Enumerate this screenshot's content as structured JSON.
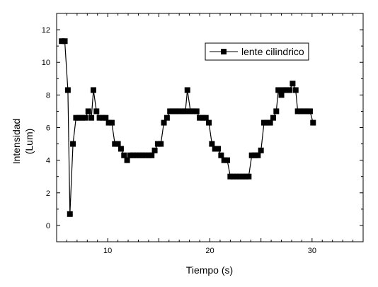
{
  "chart_data": {
    "type": "line",
    "title": "",
    "xlabel": "Tiempo (s)",
    "ylabel_line1": "Intensidad",
    "ylabel_line2": "(Lum)",
    "xlim": [
      5,
      35
    ],
    "ylim": [
      -1,
      13
    ],
    "x_ticks": [
      10,
      20,
      30
    ],
    "y_ticks": [
      0,
      2,
      4,
      6,
      8,
      10,
      12
    ],
    "grid": false,
    "legend_position": "top-right",
    "series": [
      {
        "name": "lente cilindrico",
        "color": "#000000",
        "marker": "square",
        "points": [
          [
            5.5,
            11.3
          ],
          [
            5.8,
            11.3
          ],
          [
            6.1,
            8.3
          ],
          [
            6.3,
            0.7
          ],
          [
            6.6,
            5.0
          ],
          [
            6.9,
            6.6
          ],
          [
            7.2,
            6.6
          ],
          [
            7.5,
            6.6
          ],
          [
            7.8,
            6.6
          ],
          [
            8.1,
            7.0
          ],
          [
            8.4,
            6.6
          ],
          [
            8.6,
            8.3
          ],
          [
            8.9,
            7.0
          ],
          [
            9.2,
            6.6
          ],
          [
            9.5,
            6.6
          ],
          [
            9.8,
            6.6
          ],
          [
            10.1,
            6.3
          ],
          [
            10.4,
            6.3
          ],
          [
            10.7,
            5.0
          ],
          [
            11.0,
            5.0
          ],
          [
            11.3,
            4.7
          ],
          [
            11.6,
            4.3
          ],
          [
            11.9,
            4.0
          ],
          [
            12.2,
            4.3
          ],
          [
            12.5,
            4.3
          ],
          [
            12.8,
            4.3
          ],
          [
            13.1,
            4.3
          ],
          [
            13.4,
            4.3
          ],
          [
            13.7,
            4.3
          ],
          [
            14.0,
            4.3
          ],
          [
            14.3,
            4.3
          ],
          [
            14.6,
            4.6
          ],
          [
            14.9,
            5.0
          ],
          [
            15.2,
            5.0
          ],
          [
            15.5,
            6.3
          ],
          [
            15.8,
            6.6
          ],
          [
            16.1,
            7.0
          ],
          [
            16.4,
            7.0
          ],
          [
            16.7,
            7.0
          ],
          [
            17.0,
            7.0
          ],
          [
            17.3,
            7.0
          ],
          [
            17.6,
            7.0
          ],
          [
            17.8,
            8.3
          ],
          [
            18.1,
            7.0
          ],
          [
            18.4,
            7.0
          ],
          [
            18.7,
            7.0
          ],
          [
            19.0,
            6.6
          ],
          [
            19.3,
            6.6
          ],
          [
            19.6,
            6.6
          ],
          [
            19.9,
            6.3
          ],
          [
            20.2,
            5.0
          ],
          [
            20.5,
            4.7
          ],
          [
            20.8,
            4.7
          ],
          [
            21.1,
            4.3
          ],
          [
            21.4,
            4.0
          ],
          [
            21.7,
            4.0
          ],
          [
            22.0,
            3.0
          ],
          [
            22.3,
            3.0
          ],
          [
            22.6,
            3.0
          ],
          [
            22.9,
            3.0
          ],
          [
            23.2,
            3.0
          ],
          [
            23.5,
            3.0
          ],
          [
            23.8,
            3.0
          ],
          [
            24.1,
            4.3
          ],
          [
            24.4,
            4.3
          ],
          [
            24.7,
            4.3
          ],
          [
            25.0,
            4.6
          ],
          [
            25.3,
            6.3
          ],
          [
            25.6,
            6.3
          ],
          [
            25.9,
            6.3
          ],
          [
            26.2,
            6.6
          ],
          [
            26.5,
            7.0
          ],
          [
            26.7,
            8.3
          ],
          [
            27.0,
            8.0
          ],
          [
            27.2,
            8.3
          ],
          [
            27.5,
            8.3
          ],
          [
            27.8,
            8.3
          ],
          [
            28.1,
            8.7
          ],
          [
            28.4,
            8.3
          ],
          [
            28.6,
            7.0
          ],
          [
            28.9,
            7.0
          ],
          [
            29.2,
            7.0
          ],
          [
            29.5,
            7.0
          ],
          [
            29.8,
            7.0
          ],
          [
            30.1,
            6.3
          ]
        ]
      }
    ]
  }
}
